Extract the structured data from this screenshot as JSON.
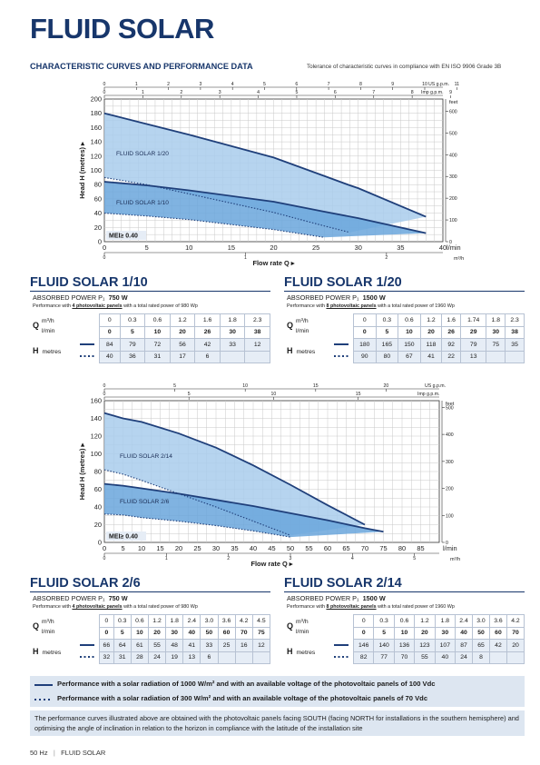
{
  "page": {
    "title": "FLUID SOLAR",
    "section_title": "CHARACTERISTIC CURVES AND PERFORMANCE DATA",
    "tolerance": "Tolerance of characteristic curves in compliance with EN ISO 9906 Grade 3B",
    "footer_hz": "50 Hz",
    "footer_sep": "|",
    "footer_name": "FLUID SOLAR"
  },
  "chart_data": [
    {
      "type": "line",
      "ylabel": "Head H (metres)",
      "xlabel": "Flow rate  Q",
      "x_unit": "l/min",
      "x_top1_unit": "US g.p.m.",
      "x_top2_unit": "Imp g.p.m.",
      "x_bottom2_unit": "m³/h",
      "y_right_unit": "feet",
      "xlim": [
        0,
        40
      ],
      "ylim": [
        0,
        200
      ],
      "x_ticks": [
        "0",
        "5",
        "10",
        "15",
        "20",
        "25",
        "30",
        "35",
        "40"
      ],
      "y_ticks": [
        "0",
        "20",
        "40",
        "60",
        "80",
        "100",
        "120",
        "140",
        "160",
        "180",
        "200"
      ],
      "x_top1_ticks": [
        "0",
        "1",
        "2",
        "3",
        "4",
        "5",
        "6",
        "7",
        "8",
        "9",
        "10",
        "11"
      ],
      "x_top2_ticks": [
        "0",
        "1",
        "2",
        "3",
        "4",
        "5",
        "6",
        "7",
        "8",
        "9"
      ],
      "x_bottom2_ticks": [
        "0",
        "1",
        "2"
      ],
      "y_right_ticks": [
        "0",
        "100",
        "200",
        "300",
        "400",
        "500",
        "600"
      ],
      "mei_label": "MEI≥ 0.40",
      "series": [
        {
          "name": "FLUID SOLAR 1/20",
          "style": "solid",
          "x": [
            0,
            5,
            10,
            20,
            26,
            29,
            30,
            38
          ],
          "y": [
            180,
            165,
            150,
            118,
            92,
            79,
            75,
            35
          ]
        },
        {
          "name": "",
          "style": "dotted",
          "x": [
            0,
            5,
            10,
            20,
            26,
            29
          ],
          "y": [
            90,
            80,
            67,
            41,
            22,
            13
          ]
        },
        {
          "name": "FLUID SOLAR 1/10",
          "style": "solid",
          "x": [
            0,
            5,
            10,
            20,
            26,
            30,
            38
          ],
          "y": [
            84,
            79,
            72,
            56,
            42,
            33,
            12
          ]
        },
        {
          "name": "",
          "style": "dotted",
          "x": [
            0,
            5,
            10,
            20,
            26
          ],
          "y": [
            40,
            36,
            31,
            17,
            6
          ]
        }
      ]
    },
    {
      "type": "line",
      "ylabel": "Head H (metres)",
      "xlabel": "Flow rate  Q",
      "x_unit": "l/min",
      "x_top1_unit": "US g.p.m.",
      "x_top2_unit": "Imp g.p.m.",
      "x_bottom2_unit": "m³/h",
      "y_right_unit": "feet",
      "xlim": [
        0,
        90
      ],
      "ylim": [
        0,
        160
      ],
      "x_ticks": [
        "0",
        "5",
        "10",
        "15",
        "20",
        "25",
        "30",
        "35",
        "40",
        "45",
        "50",
        "55",
        "60",
        "65",
        "70",
        "75",
        "80",
        "85"
      ],
      "y_ticks": [
        "0",
        "20",
        "40",
        "60",
        "80",
        "100",
        "120",
        "140",
        "160"
      ],
      "x_top1_ticks": [
        "0",
        "5",
        "10",
        "15",
        "20"
      ],
      "x_top2_ticks": [
        "0",
        "5",
        "10",
        "15"
      ],
      "x_bottom2_ticks": [
        "0",
        "1",
        "2",
        "3",
        "4",
        "5"
      ],
      "y_right_ticks": [
        "0",
        "100",
        "200",
        "300",
        "400",
        "500"
      ],
      "mei_label": "MEI≥ 0.40",
      "series": [
        {
          "name": "FLUID SOLAR 2/14",
          "style": "solid",
          "x": [
            0,
            5,
            10,
            20,
            30,
            40,
            50,
            60,
            70
          ],
          "y": [
            146,
            140,
            136,
            123,
            107,
            87,
            65,
            42,
            20
          ]
        },
        {
          "name": "",
          "style": "dotted",
          "x": [
            0,
            5,
            10,
            20,
            30,
            40,
            50
          ],
          "y": [
            82,
            77,
            70,
            55,
            40,
            24,
            8
          ]
        },
        {
          "name": "FLUID SOLAR 2/6",
          "style": "solid",
          "x": [
            0,
            5,
            10,
            20,
            30,
            40,
            50,
            60,
            70,
            75
          ],
          "y": [
            66,
            64,
            61,
            55,
            48,
            41,
            33,
            25,
            16,
            12
          ]
        },
        {
          "name": "",
          "style": "dotted",
          "x": [
            0,
            5,
            10,
            20,
            30,
            40,
            50
          ],
          "y": [
            32,
            31,
            28,
            24,
            19,
            13,
            6
          ]
        }
      ]
    }
  ],
  "tables": {
    "t110": {
      "title": "FLUID SOLAR 1/10",
      "power_label": "ABSORBED POWER P₁",
      "power_value": "750 W",
      "perf_pre": "Performance with ",
      "perf_panels": "4 photovoltaic panels",
      "perf_post": " with a total rated power of 980 Wp",
      "q_symbol": "Q",
      "q_unit1": "m³/h",
      "q_unit2": "l/min",
      "h_symbol": "H",
      "h_unit": "metres",
      "m3h": [
        "0",
        "0.3",
        "0.6",
        "1.2",
        "1.6",
        "1.8",
        "2.3"
      ],
      "lmin": [
        "0",
        "5",
        "10",
        "20",
        "26",
        "30",
        "38"
      ],
      "h_solid": [
        "84",
        "79",
        "72",
        "56",
        "42",
        "33",
        "12"
      ],
      "h_dotted": [
        "40",
        "36",
        "31",
        "17",
        "6",
        "",
        ""
      ]
    },
    "t120": {
      "title": "FLUID SOLAR 1/20",
      "power_label": "ABSORBED POWER P₁",
      "power_value": "1500 W",
      "perf_pre": "Performance with ",
      "perf_panels": "8 photovoltaic panels",
      "perf_post": " with a total rated power of 1960 Wp",
      "q_symbol": "Q",
      "q_unit1": "m³/h",
      "q_unit2": "l/min",
      "h_symbol": "H",
      "h_unit": "metres",
      "m3h": [
        "0",
        "0.3",
        "0.6",
        "1.2",
        "1.6",
        "1.74",
        "1.8",
        "2.3"
      ],
      "lmin": [
        "0",
        "5",
        "10",
        "20",
        "26",
        "29",
        "30",
        "38"
      ],
      "h_solid": [
        "180",
        "165",
        "150",
        "118",
        "92",
        "79",
        "75",
        "35"
      ],
      "h_dotted": [
        "90",
        "80",
        "67",
        "41",
        "22",
        "13",
        "",
        ""
      ]
    },
    "t26": {
      "title": "FLUID SOLAR 2/6",
      "power_label": "ABSORBED POWER P₁",
      "power_value": "750 W",
      "perf_pre": "Performance with ",
      "perf_panels": "4 photovoltaic panels",
      "perf_post": " with a total rated power of 980 Wp",
      "q_symbol": "Q",
      "q_unit1": "m³/h",
      "q_unit2": "l/min",
      "h_symbol": "H",
      "h_unit": "metres",
      "m3h": [
        "0",
        "0.3",
        "0.6",
        "1.2",
        "1.8",
        "2.4",
        "3.0",
        "3.6",
        "4.2",
        "4.5"
      ],
      "lmin": [
        "0",
        "5",
        "10",
        "20",
        "30",
        "40",
        "50",
        "60",
        "70",
        "75"
      ],
      "h_solid": [
        "66",
        "64",
        "61",
        "55",
        "48",
        "41",
        "33",
        "25",
        "16",
        "12"
      ],
      "h_dotted": [
        "32",
        "31",
        "28",
        "24",
        "19",
        "13",
        "6",
        "",
        "",
        ""
      ]
    },
    "t214": {
      "title": "FLUID SOLAR 2/14",
      "power_label": "ABSORBED POWER P₁",
      "power_value": "1500 W",
      "perf_pre": "Performance with ",
      "perf_panels": "8 photovoltaic panels",
      "perf_post": " with a total rated power of 1960 Wp",
      "q_symbol": "Q",
      "q_unit1": "m³/h",
      "q_unit2": "l/min",
      "h_symbol": "H",
      "h_unit": "metres",
      "m3h": [
        "0",
        "0.3",
        "0.6",
        "1.2",
        "1.8",
        "2.4",
        "3.0",
        "3.6",
        "4.2"
      ],
      "lmin": [
        "0",
        "5",
        "10",
        "20",
        "30",
        "40",
        "50",
        "60",
        "70"
      ],
      "h_solid": [
        "146",
        "140",
        "136",
        "123",
        "107",
        "87",
        "65",
        "42",
        "20"
      ],
      "h_dotted": [
        "82",
        "77",
        "70",
        "55",
        "40",
        "24",
        "8",
        "",
        ""
      ]
    }
  },
  "legend": {
    "solid": "Performance with a solar radiation of 1000 W/m² and with an available voltage of the photovoltaic panels of 100 Vdc",
    "dotted": "Performance with a solar radiation of 300 W/m² and with an available voltage of the photovoltaic panels of 70 Vdc"
  },
  "note": "The performance curves illustrated above are obtained with the photovoltaic panels facing SOUTH (facing NORTH for installations in the southern hemisphere) and optimising the angle of inclination in relation to the horizon in compliance with the latitude of the installation site",
  "colors": {
    "brand": "#17366b",
    "line": "#1f3f7a",
    "fill_outer": "#a9cdec",
    "fill_inner": "#6aa6dc",
    "legend_bg": "#dde6f1"
  }
}
